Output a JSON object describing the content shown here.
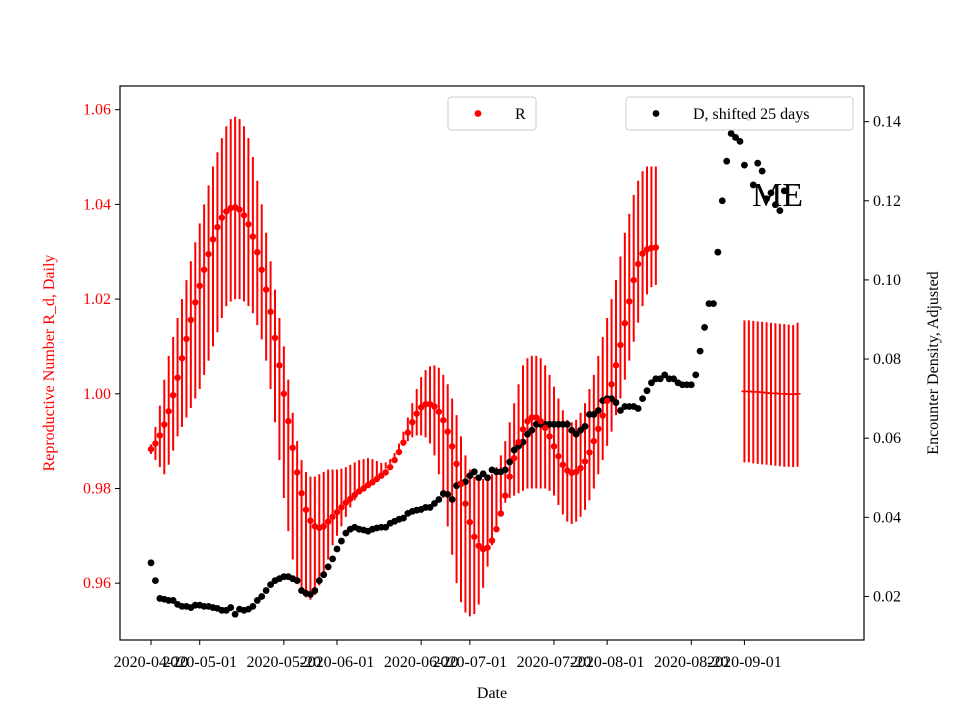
{
  "chart_data": {
    "type": "scatter",
    "xlabel": "Date",
    "ylabel_left": "Reproductive Number R_d, Daily",
    "ylabel_right": "Encounter Density, Adjusted",
    "annotation": "ME",
    "xlim": [
      "2020-04-13",
      "2020-09-28"
    ],
    "ylim_left": [
      0.948,
      1.065
    ],
    "ylim_right": [
      0.009,
      0.149
    ],
    "x_ticks": [
      {
        "date": "2020-04-20",
        "label": "2020-04-20"
      },
      {
        "date": "2020-05-01",
        "label": "2020-05-01"
      },
      {
        "date": "2020-05-20",
        "label": "2020-05-20"
      },
      {
        "date": "2020-06-01",
        "label": "2020-06-01"
      },
      {
        "date": "2020-06-20",
        "label": "2020-06-20"
      },
      {
        "date": "2020-07-01",
        "label": "2020-07-01"
      },
      {
        "date": "2020-07-20",
        "label": "2020-07-20"
      },
      {
        "date": "2020-08-01",
        "label": "2020-08-01"
      },
      {
        "date": "2020-08-20",
        "label": "2020-08-20"
      },
      {
        "date": "2020-09-01",
        "label": "2020-09-01"
      }
    ],
    "y_ticks_left": [
      "0.96",
      "0.98",
      "1.00",
      "1.02",
      "1.04",
      "1.06"
    ],
    "y_ticks_right": [
      "0.02",
      "0.04",
      "0.06",
      "0.08",
      "0.10",
      "0.12",
      "0.14"
    ],
    "legend_left": {
      "label": "R",
      "color": "#ff0000",
      "placement": "top-center"
    },
    "legend_right": {
      "label": "D, shifted 25 days",
      "color": "#000000",
      "placement": "top-right"
    },
    "r_series": {
      "name": "R",
      "color": "#ff0000",
      "start_date": "2020-04-20",
      "values": [
        0.9883,
        0.9895,
        0.9912,
        0.9935,
        0.9963,
        0.9997,
        1.0034,
        1.0075,
        1.0116,
        1.0156,
        1.0193,
        1.0228,
        1.0262,
        1.0295,
        1.0326,
        1.0352,
        1.0372,
        1.0385,
        1.0392,
        1.0394,
        1.0389,
        1.0377,
        1.0358,
        1.0332,
        1.0299,
        1.0262,
        1.022,
        1.0173,
        1.0118,
        1.006,
        1.0,
        0.9942,
        0.9886,
        0.9834,
        0.979,
        0.9755,
        0.9732,
        0.972,
        0.9717,
        0.972,
        0.973,
        0.974,
        0.975,
        0.976,
        0.977,
        0.9778,
        0.9786,
        0.9794,
        0.98,
        0.9807,
        0.9813,
        0.982,
        0.9827,
        0.9834,
        0.9845,
        0.986,
        0.9877,
        0.9897,
        0.9918,
        0.994,
        0.9958,
        0.9971,
        0.9978,
        0.9978,
        0.9973,
        0.9962,
        0.9944,
        0.992,
        0.9889,
        0.9852,
        0.981,
        0.9768,
        0.9729,
        0.9698,
        0.9679,
        0.9672,
        0.9675,
        0.969,
        0.9714,
        0.9747,
        0.9785,
        0.9825,
        0.9864,
        0.9898,
        0.9925,
        0.9942,
        0.995,
        0.995,
        0.9942,
        0.9928,
        0.991,
        0.9889,
        0.9868,
        0.985,
        0.9838,
        0.9833,
        0.9835,
        0.9843,
        0.9857,
        0.9876,
        0.99,
        0.9926,
        0.9954,
        0.9985,
        1.002,
        1.006,
        1.0103,
        1.0149,
        1.0195,
        1.024,
        1.0274,
        1.0296,
        1.0305,
        1.0308,
        1.0309
      ],
      "ci_low": [
        0.9873,
        0.986,
        0.9845,
        0.983,
        0.985,
        0.988,
        0.991,
        0.993,
        0.995,
        0.997,
        0.999,
        1.001,
        1.004,
        1.007,
        1.01,
        1.013,
        1.016,
        1.0185,
        1.0195,
        1.02,
        1.02,
        1.0195,
        1.0185,
        1.017,
        1.0145,
        1.0115,
        1.007,
        1.001,
        0.994,
        0.986,
        0.978,
        0.971,
        0.965,
        0.961,
        0.9585,
        0.957,
        0.9565,
        0.9575,
        0.9595,
        0.962,
        0.965,
        0.968,
        0.97,
        0.972,
        0.974,
        0.976,
        0.9775,
        0.979,
        0.98,
        0.9808,
        0.9816,
        0.9824,
        0.9832,
        0.9842,
        0.9852,
        0.9865,
        0.9878,
        0.989,
        0.99,
        0.9908,
        0.9912,
        0.9912,
        0.9908,
        0.9895,
        0.987,
        0.983,
        0.978,
        0.972,
        0.966,
        0.96,
        0.956,
        0.9538,
        0.953,
        0.9535,
        0.9555,
        0.959,
        0.9635,
        0.968,
        0.972,
        0.975,
        0.977,
        0.978,
        0.9785,
        0.979,
        0.9795,
        0.98,
        0.98,
        0.98,
        0.98,
        0.98,
        0.9795,
        0.9785,
        0.9765,
        0.9745,
        0.973,
        0.9725,
        0.973,
        0.974,
        0.9755,
        0.9775,
        0.98,
        0.983,
        0.986,
        0.989,
        0.992,
        0.9955,
        0.999,
        1.003,
        1.007,
        1.011,
        1.015,
        1.0185,
        1.021,
        1.0225,
        1.023
      ],
      "ci_high": [
        0.9893,
        0.993,
        0.9975,
        1.003,
        1.008,
        1.012,
        1.016,
        1.02,
        1.024,
        1.028,
        1.032,
        1.036,
        1.04,
        1.044,
        1.048,
        1.051,
        1.054,
        1.0565,
        1.058,
        1.0585,
        1.058,
        1.0565,
        1.054,
        1.05,
        1.045,
        1.04,
        1.034,
        1.028,
        1.022,
        1.016,
        1.01,
        1.003,
        0.996,
        0.99,
        0.986,
        0.9835,
        0.9825,
        0.9825,
        0.983,
        0.9835,
        0.984,
        0.984,
        0.984,
        0.9842,
        0.9845,
        0.985,
        0.9855,
        0.986,
        0.9862,
        0.9864,
        0.9862,
        0.9858,
        0.9854,
        0.9855,
        0.9862,
        0.9875,
        0.9895,
        0.992,
        0.995,
        0.998,
        1.001,
        1.0035,
        1.005,
        1.0058,
        1.006,
        1.0055,
        1.004,
        1.002,
        0.999,
        0.9955,
        0.991,
        0.987,
        0.984,
        0.9825,
        0.982,
        0.982,
        0.9822,
        0.983,
        0.9845,
        0.987,
        0.99,
        0.994,
        0.998,
        1.002,
        1.006,
        1.0075,
        1.008,
        1.008,
        1.0075,
        1.006,
        1.004,
        1.0015,
        0.999,
        0.9965,
        0.9945,
        0.994,
        0.9945,
        0.996,
        0.998,
        1.001,
        1.004,
        1.008,
        1.012,
        1.016,
        1.02,
        1.024,
        1.029,
        1.034,
        1.038,
        1.042,
        1.045,
        1.047,
        1.048,
        1.048,
        1.048
      ]
    },
    "r_projection": {
      "start_date": "2020-09-01",
      "values": [
        1.0005,
        1.0005,
        1.0004,
        1.0004,
        1.0003,
        1.0002,
        1.0001,
        1.0001,
        1.0,
        1.0,
        0.9999,
        0.9999,
        1.0
      ],
      "ci_low": [
        0.9855,
        0.9855,
        0.9853,
        0.9852,
        0.9851,
        0.985,
        0.9849,
        0.9848,
        0.9847,
        0.9846,
        0.9846,
        0.9845,
        0.9846
      ],
      "ci_high": [
        1.0155,
        1.0155,
        1.0154,
        1.0153,
        1.0152,
        1.0151,
        1.015,
        1.0149,
        1.0148,
        1.0147,
        1.0146,
        1.0145,
        1.015
      ]
    },
    "d_series": {
      "name": "D, shifted 25 days",
      "color": "#000000",
      "points": [
        {
          "date": "2020-04-20",
          "value": 0.0285
        },
        {
          "date": "2020-04-21",
          "value": 0.024
        },
        {
          "date": "2020-04-22",
          "value": 0.0195
        },
        {
          "date": "2020-04-23",
          "value": 0.0193
        },
        {
          "date": "2020-04-24",
          "value": 0.019
        },
        {
          "date": "2020-04-25",
          "value": 0.019
        },
        {
          "date": "2020-04-26",
          "value": 0.018
        },
        {
          "date": "2020-04-27",
          "value": 0.0175
        },
        {
          "date": "2020-04-28",
          "value": 0.0175
        },
        {
          "date": "2020-04-29",
          "value": 0.0172
        },
        {
          "date": "2020-04-30",
          "value": 0.0178
        },
        {
          "date": "2020-05-01",
          "value": 0.0178
        },
        {
          "date": "2020-05-02",
          "value": 0.0175
        },
        {
          "date": "2020-05-03",
          "value": 0.0175
        },
        {
          "date": "2020-05-04",
          "value": 0.0172
        },
        {
          "date": "2020-05-05",
          "value": 0.017
        },
        {
          "date": "2020-05-06",
          "value": 0.0165
        },
        {
          "date": "2020-05-07",
          "value": 0.0165
        },
        {
          "date": "2020-05-08",
          "value": 0.0172
        },
        {
          "date": "2020-05-09",
          "value": 0.0155
        },
        {
          "date": "2020-05-10",
          "value": 0.0168
        },
        {
          "date": "2020-05-11",
          "value": 0.0165
        },
        {
          "date": "2020-05-12",
          "value": 0.0168
        },
        {
          "date": "2020-05-13",
          "value": 0.0175
        },
        {
          "date": "2020-05-14",
          "value": 0.019
        },
        {
          "date": "2020-05-15",
          "value": 0.02
        },
        {
          "date": "2020-05-16",
          "value": 0.0215
        },
        {
          "date": "2020-05-17",
          "value": 0.023
        },
        {
          "date": "2020-05-18",
          "value": 0.024
        },
        {
          "date": "2020-05-19",
          "value": 0.0245
        },
        {
          "date": "2020-05-20",
          "value": 0.025
        },
        {
          "date": "2020-05-21",
          "value": 0.025
        },
        {
          "date": "2020-05-22",
          "value": 0.0245
        },
        {
          "date": "2020-05-23",
          "value": 0.024
        },
        {
          "date": "2020-05-24",
          "value": 0.0215
        },
        {
          "date": "2020-05-25",
          "value": 0.0208
        },
        {
          "date": "2020-05-26",
          "value": 0.0205
        },
        {
          "date": "2020-05-27",
          "value": 0.0215
        },
        {
          "date": "2020-05-28",
          "value": 0.024
        },
        {
          "date": "2020-05-29",
          "value": 0.0255
        },
        {
          "date": "2020-05-30",
          "value": 0.0275
        },
        {
          "date": "2020-05-31",
          "value": 0.0295
        },
        {
          "date": "2020-06-01",
          "value": 0.032
        },
        {
          "date": "2020-06-02",
          "value": 0.034
        },
        {
          "date": "2020-06-03",
          "value": 0.036
        },
        {
          "date": "2020-06-04",
          "value": 0.037
        },
        {
          "date": "2020-06-05",
          "value": 0.0375
        },
        {
          "date": "2020-06-06",
          "value": 0.037
        },
        {
          "date": "2020-06-07",
          "value": 0.0368
        },
        {
          "date": "2020-06-08",
          "value": 0.0365
        },
        {
          "date": "2020-06-09",
          "value": 0.037
        },
        {
          "date": "2020-06-10",
          "value": 0.0373
        },
        {
          "date": "2020-06-11",
          "value": 0.0375
        },
        {
          "date": "2020-06-12",
          "value": 0.0375
        },
        {
          "date": "2020-06-13",
          "value": 0.0385
        },
        {
          "date": "2020-06-14",
          "value": 0.039
        },
        {
          "date": "2020-06-15",
          "value": 0.0395
        },
        {
          "date": "2020-06-16",
          "value": 0.0398
        },
        {
          "date": "2020-06-17",
          "value": 0.041
        },
        {
          "date": "2020-06-18",
          "value": 0.0415
        },
        {
          "date": "2020-06-19",
          "value": 0.0418
        },
        {
          "date": "2020-06-20",
          "value": 0.042
        },
        {
          "date": "2020-06-21",
          "value": 0.0425
        },
        {
          "date": "2020-06-22",
          "value": 0.0425
        },
        {
          "date": "2020-06-23",
          "value": 0.0435
        },
        {
          "date": "2020-06-24",
          "value": 0.0445
        },
        {
          "date": "2020-06-25",
          "value": 0.046
        },
        {
          "date": "2020-06-26",
          "value": 0.0458
        },
        {
          "date": "2020-06-27",
          "value": 0.0445
        },
        {
          "date": "2020-06-28",
          "value": 0.048
        },
        {
          "date": "2020-06-29",
          "value": 0.0485
        },
        {
          "date": "2020-06-30",
          "value": 0.049
        },
        {
          "date": "2020-07-01",
          "value": 0.0505
        },
        {
          "date": "2020-07-02",
          "value": 0.0515
        },
        {
          "date": "2020-07-03",
          "value": 0.05
        },
        {
          "date": "2020-07-04",
          "value": 0.051
        },
        {
          "date": "2020-07-05",
          "value": 0.05
        },
        {
          "date": "2020-07-06",
          "value": 0.052
        },
        {
          "date": "2020-07-07",
          "value": 0.0515
        },
        {
          "date": "2020-07-08",
          "value": 0.0515
        },
        {
          "date": "2020-07-09",
          "value": 0.052
        },
        {
          "date": "2020-07-10",
          "value": 0.054
        },
        {
          "date": "2020-07-11",
          "value": 0.057
        },
        {
          "date": "2020-07-12",
          "value": 0.058
        },
        {
          "date": "2020-07-13",
          "value": 0.059
        },
        {
          "date": "2020-07-14",
          "value": 0.061
        },
        {
          "date": "2020-07-15",
          "value": 0.062
        },
        {
          "date": "2020-07-16",
          "value": 0.0635
        },
        {
          "date": "2020-07-17",
          "value": 0.0635
        },
        {
          "date": "2020-07-18",
          "value": 0.0635
        },
        {
          "date": "2020-07-19",
          "value": 0.0635
        },
        {
          "date": "2020-07-20",
          "value": 0.0635
        },
        {
          "date": "2020-07-21",
          "value": 0.0635
        },
        {
          "date": "2020-07-22",
          "value": 0.0635
        },
        {
          "date": "2020-07-23",
          "value": 0.0635
        },
        {
          "date": "2020-07-24",
          "value": 0.062
        },
        {
          "date": "2020-07-25",
          "value": 0.061
        },
        {
          "date": "2020-07-26",
          "value": 0.062
        },
        {
          "date": "2020-07-27",
          "value": 0.063
        },
        {
          "date": "2020-07-28",
          "value": 0.066
        },
        {
          "date": "2020-07-29",
          "value": 0.066
        },
        {
          "date": "2020-07-30",
          "value": 0.067
        },
        {
          "date": "2020-07-31",
          "value": 0.0695
        },
        {
          "date": "2020-08-01",
          "value": 0.07
        },
        {
          "date": "2020-08-02",
          "value": 0.07
        },
        {
          "date": "2020-08-03",
          "value": 0.069
        },
        {
          "date": "2020-08-04",
          "value": 0.067
        },
        {
          "date": "2020-08-05",
          "value": 0.068
        },
        {
          "date": "2020-08-06",
          "value": 0.068
        },
        {
          "date": "2020-08-07",
          "value": 0.068
        },
        {
          "date": "2020-08-08",
          "value": 0.0675
        },
        {
          "date": "2020-08-09",
          "value": 0.07
        },
        {
          "date": "2020-08-10",
          "value": 0.072
        },
        {
          "date": "2020-08-11",
          "value": 0.074
        },
        {
          "date": "2020-08-12",
          "value": 0.075
        },
        {
          "date": "2020-08-13",
          "value": 0.075
        },
        {
          "date": "2020-08-14",
          "value": 0.076
        },
        {
          "date": "2020-08-15",
          "value": 0.075
        },
        {
          "date": "2020-08-16",
          "value": 0.075
        },
        {
          "date": "2020-08-17",
          "value": 0.074
        },
        {
          "date": "2020-08-18",
          "value": 0.0735
        },
        {
          "date": "2020-08-19",
          "value": 0.0735
        },
        {
          "date": "2020-08-20",
          "value": 0.0735
        },
        {
          "date": "2020-08-21",
          "value": 0.076
        },
        {
          "date": "2020-08-22",
          "value": 0.082
        },
        {
          "date": "2020-08-23",
          "value": 0.088
        },
        {
          "date": "2020-08-24",
          "value": 0.094
        },
        {
          "date": "2020-08-25",
          "value": 0.094
        },
        {
          "date": "2020-08-26",
          "value": 0.107
        },
        {
          "date": "2020-08-27",
          "value": 0.12
        },
        {
          "date": "2020-08-28",
          "value": 0.13
        },
        {
          "date": "2020-08-29",
          "value": 0.137
        },
        {
          "date": "2020-08-30",
          "value": 0.136
        },
        {
          "date": "2020-08-31",
          "value": 0.135
        },
        {
          "date": "2020-09-01",
          "value": 0.129
        },
        {
          "date": "2020-09-02",
          "value": 0.141
        },
        {
          "date": "2020-09-03",
          "value": 0.124
        },
        {
          "date": "2020-09-04",
          "value": 0.1295
        },
        {
          "date": "2020-09-05",
          "value": 0.1275
        },
        {
          "date": "2020-09-06",
          "value": 0.1205
        },
        {
          "date": "2020-09-07",
          "value": 0.122
        },
        {
          "date": "2020-09-08",
          "value": 0.119
        },
        {
          "date": "2020-09-09",
          "value": 0.1175
        },
        {
          "date": "2020-09-10",
          "value": 0.1225
        }
      ]
    }
  }
}
